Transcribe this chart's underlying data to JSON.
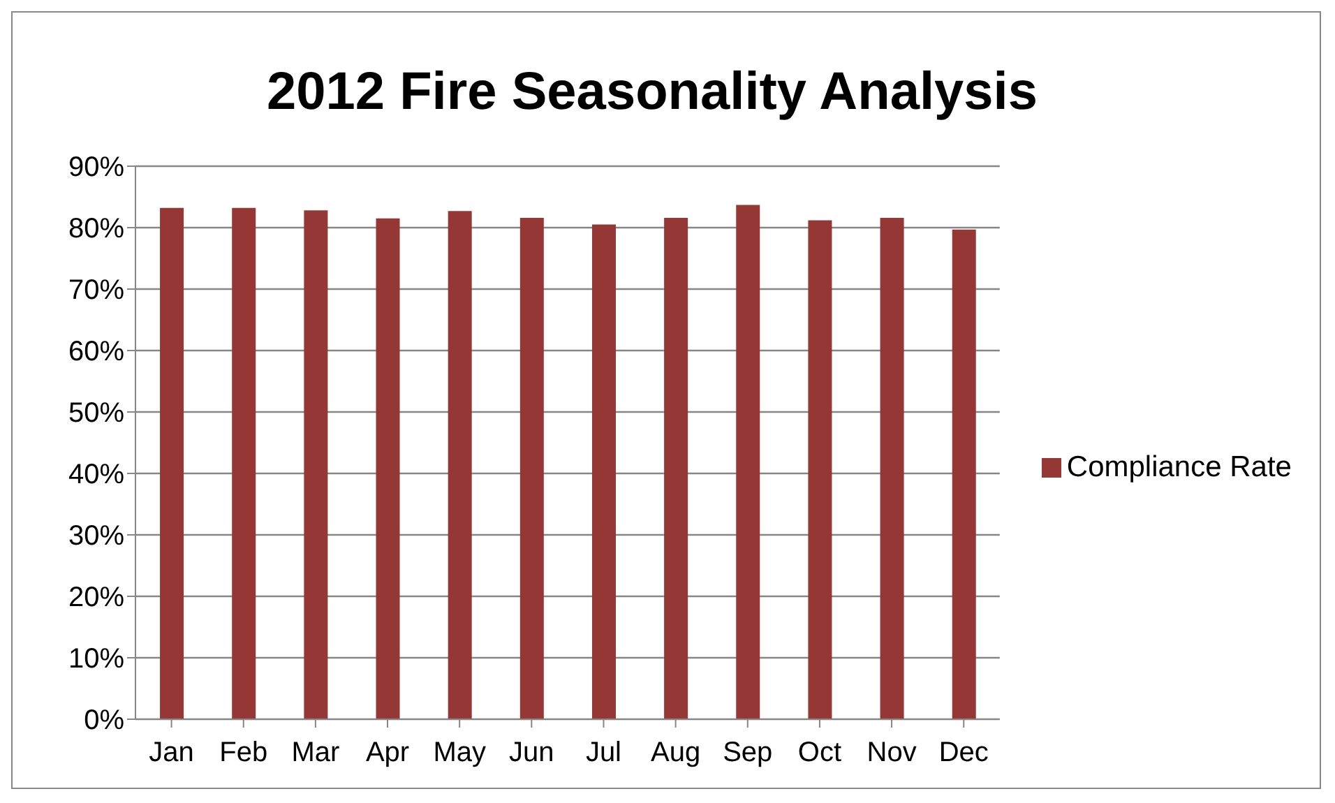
{
  "chart_data": {
    "type": "bar",
    "title": "2012 Fire Seasonality Analysis",
    "categories": [
      "Jan",
      "Feb",
      "Mar",
      "Apr",
      "May",
      "Jun",
      "Jul",
      "Aug",
      "Sep",
      "Oct",
      "Nov",
      "Dec"
    ],
    "series": [
      {
        "name": "Compliance Rate",
        "color": "#953735",
        "values": [
          83.2,
          83.2,
          82.8,
          81.5,
          82.7,
          81.6,
          80.5,
          81.6,
          83.7,
          81.2,
          81.6,
          79.7
        ]
      }
    ],
    "ylim": [
      0,
      90
    ],
    "yticks": [
      {
        "value": 0,
        "label": "0%"
      },
      {
        "value": 10,
        "label": "10%"
      },
      {
        "value": 20,
        "label": "20%"
      },
      {
        "value": 30,
        "label": "30%"
      },
      {
        "value": 40,
        "label": "40%"
      },
      {
        "value": 50,
        "label": "50%"
      },
      {
        "value": 60,
        "label": "60%"
      },
      {
        "value": 70,
        "label": "70%"
      },
      {
        "value": 80,
        "label": "80%"
      },
      {
        "value": 90,
        "label": "90%"
      }
    ],
    "grid": "y",
    "legend": "right"
  }
}
